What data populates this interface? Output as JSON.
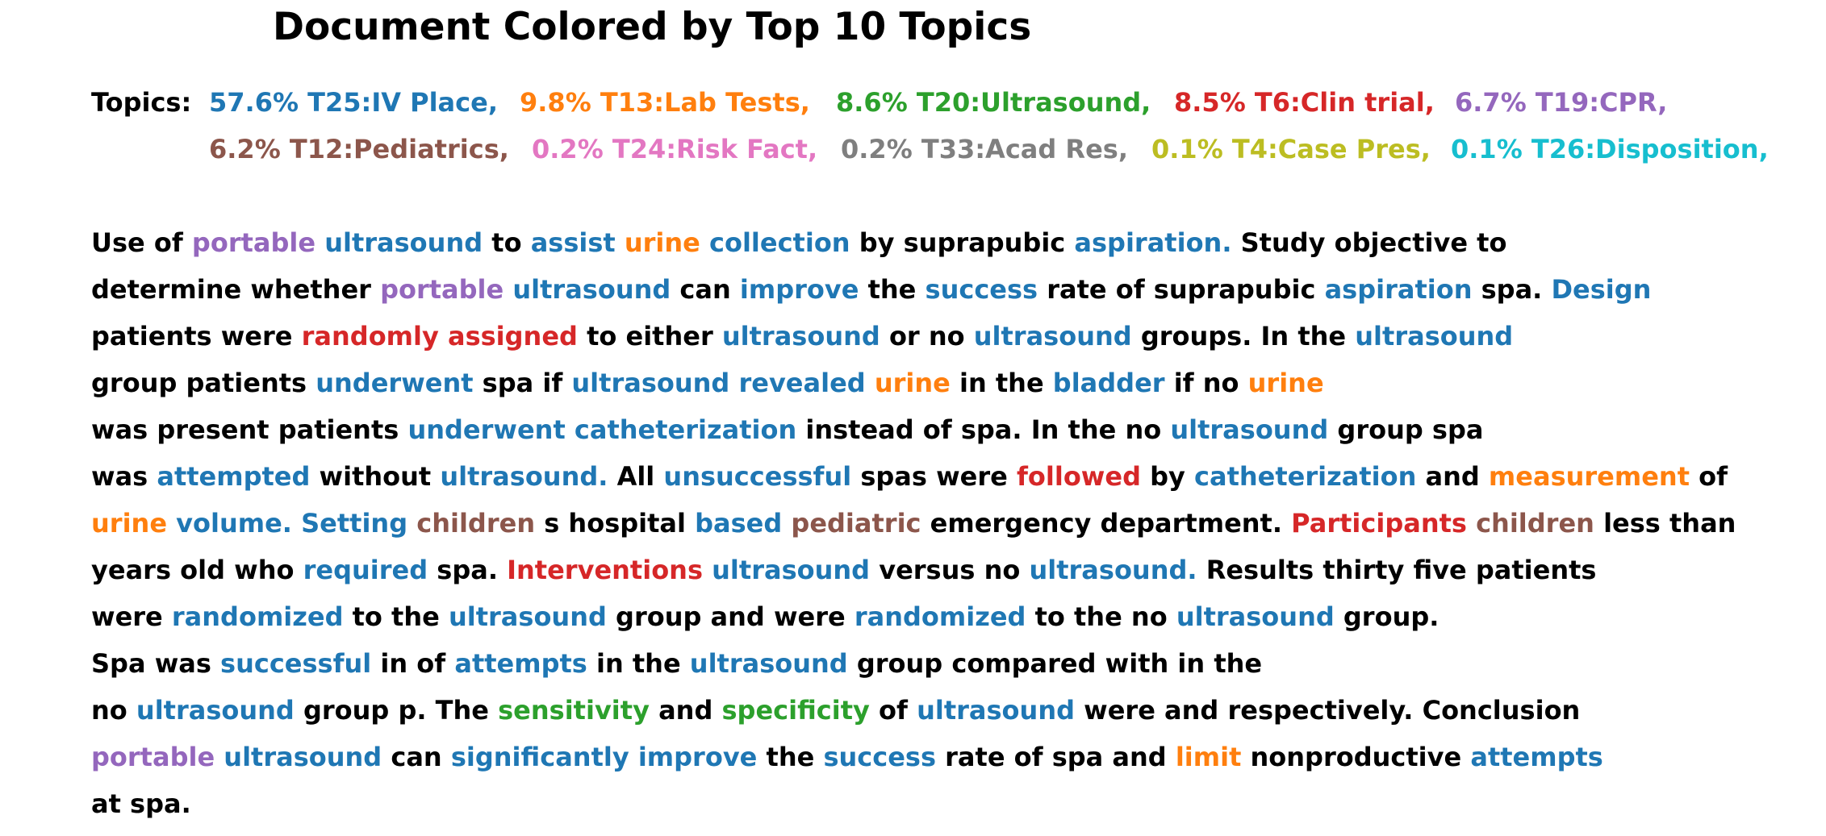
{
  "title": "Document Colored by Top 10 Topics",
  "topics_label": "Topics:",
  "colors": {
    "T25": "#1f77b4",
    "T13": "#ff7f0e",
    "T20": "#2ca02c",
    "T6": "#d62728",
    "T19": "#9467bd",
    "T12": "#8c564b",
    "T24": "#e377c2",
    "T33": "#7f7f7f",
    "T4": "#bcbd22",
    "T26": "#17becf"
  },
  "topics": [
    {
      "id": "T25",
      "text": "57.6% T25:IV Place,"
    },
    {
      "id": "T13",
      "text": "9.8% T13:Lab Tests,"
    },
    {
      "id": "T20",
      "text": "8.6% T20:Ultrasound,"
    },
    {
      "id": "T6",
      "text": "8.5% T6:Clin trial,"
    },
    {
      "id": "T19",
      "text": "6.7% T19:CPR,"
    },
    {
      "id": "T12",
      "text": "6.2% T12:Pediatrics,"
    },
    {
      "id": "T24",
      "text": "0.2% T24:Risk Fact,"
    },
    {
      "id": "T33",
      "text": "0.2% T33:Acad Res,"
    },
    {
      "id": "T4",
      "text": "0.1% T4:Case Pres,"
    },
    {
      "id": "T26",
      "text": "0.1% T26:Disposition,"
    }
  ],
  "document_lines": [
    [
      [
        "Use of ",
        null
      ],
      [
        "portable",
        "T19"
      ],
      [
        " ",
        null
      ],
      [
        "ultrasound",
        "T25"
      ],
      [
        " to ",
        null
      ],
      [
        "assist",
        "T25"
      ],
      [
        " ",
        null
      ],
      [
        "urine",
        "T13"
      ],
      [
        " ",
        null
      ],
      [
        "collection",
        "T25"
      ],
      [
        " by suprapubic ",
        null
      ],
      [
        "aspiration.",
        "T25"
      ],
      [
        " Study objective to",
        null
      ]
    ],
    [
      [
        "determine whether ",
        null
      ],
      [
        "portable",
        "T19"
      ],
      [
        " ",
        null
      ],
      [
        "ultrasound",
        "T25"
      ],
      [
        " can ",
        null
      ],
      [
        "improve",
        "T25"
      ],
      [
        " the ",
        null
      ],
      [
        "success",
        "T25"
      ],
      [
        " rate of suprapubic ",
        null
      ],
      [
        "aspiration",
        "T25"
      ],
      [
        " spa. ",
        null
      ],
      [
        "Design",
        "T25"
      ]
    ],
    [
      [
        "patients were ",
        null
      ],
      [
        "randomly",
        "T6"
      ],
      [
        " ",
        null
      ],
      [
        "assigned",
        "T6"
      ],
      [
        " to either ",
        null
      ],
      [
        "ultrasound",
        "T25"
      ],
      [
        " or no ",
        null
      ],
      [
        "ultrasound",
        "T25"
      ],
      [
        " groups. In the ",
        null
      ],
      [
        "ultrasound",
        "T25"
      ]
    ],
    [
      [
        "group patients ",
        null
      ],
      [
        "underwent",
        "T25"
      ],
      [
        " spa if ",
        null
      ],
      [
        "ultrasound",
        "T25"
      ],
      [
        " ",
        null
      ],
      [
        "revealed",
        "T25"
      ],
      [
        " ",
        null
      ],
      [
        "urine",
        "T13"
      ],
      [
        " in the ",
        null
      ],
      [
        "bladder",
        "T25"
      ],
      [
        " if no ",
        null
      ],
      [
        "urine",
        "T13"
      ]
    ],
    [
      [
        "was present patients ",
        null
      ],
      [
        "underwent",
        "T25"
      ],
      [
        " ",
        null
      ],
      [
        "catheterization",
        "T25"
      ],
      [
        " instead of spa. In the no ",
        null
      ],
      [
        "ultrasound",
        "T25"
      ],
      [
        " group spa",
        null
      ]
    ],
    [
      [
        "was ",
        null
      ],
      [
        "attempted",
        "T25"
      ],
      [
        " without ",
        null
      ],
      [
        "ultrasound.",
        "T25"
      ],
      [
        " All ",
        null
      ],
      [
        "unsuccessful",
        "T25"
      ],
      [
        " spas were ",
        null
      ],
      [
        "followed",
        "T6"
      ],
      [
        " by ",
        null
      ],
      [
        "catheterization",
        "T25"
      ],
      [
        " and ",
        null
      ],
      [
        "measurement",
        "T13"
      ],
      [
        " of",
        null
      ]
    ],
    [
      [
        "urine",
        "T13"
      ],
      [
        " ",
        null
      ],
      [
        "volume.",
        "T25"
      ],
      [
        " ",
        null
      ],
      [
        "Setting",
        "T25"
      ],
      [
        " ",
        null
      ],
      [
        "children",
        "T12"
      ],
      [
        " s hospital ",
        null
      ],
      [
        "based",
        "T25"
      ],
      [
        " ",
        null
      ],
      [
        "pediatric",
        "T12"
      ],
      [
        " emergency department. ",
        null
      ],
      [
        "Participants",
        "T6"
      ],
      [
        " ",
        null
      ],
      [
        "children",
        "T12"
      ],
      [
        " less than",
        null
      ]
    ],
    [
      [
        "years old who ",
        null
      ],
      [
        "required",
        "T25"
      ],
      [
        " spa. ",
        null
      ],
      [
        "Interventions",
        "T6"
      ],
      [
        " ",
        null
      ],
      [
        "ultrasound",
        "T25"
      ],
      [
        " versus no ",
        null
      ],
      [
        "ultrasound.",
        "T25"
      ],
      [
        " Results thirty five patients",
        null
      ]
    ],
    [
      [
        "were ",
        null
      ],
      [
        "randomized",
        "T25"
      ],
      [
        " to the ",
        null
      ],
      [
        "ultrasound",
        "T25"
      ],
      [
        " group and were ",
        null
      ],
      [
        "randomized",
        "T25"
      ],
      [
        " to the no ",
        null
      ],
      [
        "ultrasound",
        "T25"
      ],
      [
        " group.",
        null
      ]
    ],
    [
      [
        "Spa was ",
        null
      ],
      [
        "successful",
        "T25"
      ],
      [
        " in of ",
        null
      ],
      [
        "attempts",
        "T25"
      ],
      [
        " in the ",
        null
      ],
      [
        "ultrasound",
        "T25"
      ],
      [
        " group compared with in the",
        null
      ]
    ],
    [
      [
        "no ",
        null
      ],
      [
        "ultrasound",
        "T25"
      ],
      [
        " group p. The ",
        null
      ],
      [
        "sensitivity",
        "T20"
      ],
      [
        " and ",
        null
      ],
      [
        "specificity",
        "T20"
      ],
      [
        " of ",
        null
      ],
      [
        "ultrasound",
        "T25"
      ],
      [
        " were and respectively. Conclusion",
        null
      ]
    ],
    [
      [
        "portable",
        "T19"
      ],
      [
        " ",
        null
      ],
      [
        "ultrasound",
        "T25"
      ],
      [
        " can ",
        null
      ],
      [
        "significantly",
        "T25"
      ],
      [
        " ",
        null
      ],
      [
        "improve",
        "T25"
      ],
      [
        " the ",
        null
      ],
      [
        "success",
        "T25"
      ],
      [
        " rate of spa and ",
        null
      ],
      [
        "limit",
        "T13"
      ],
      [
        " nonproductive ",
        null
      ],
      [
        "attempts",
        "T25"
      ]
    ],
    [
      [
        "at spa.",
        null
      ]
    ]
  ]
}
